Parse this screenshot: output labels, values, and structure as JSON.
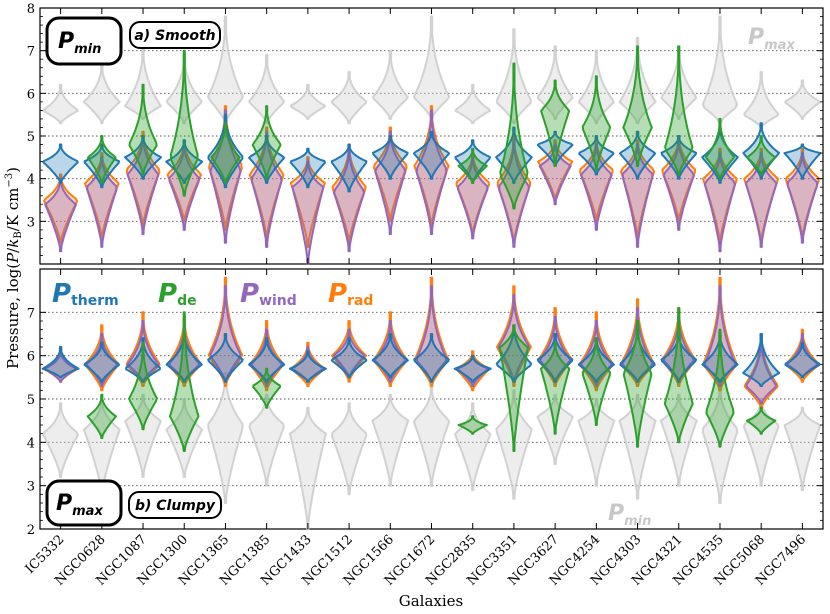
{
  "chart_data": {
    "type": "violin",
    "xlabel": "Galaxies",
    "ylabel": "Pressure, log(P/k_B/K cm^-3)",
    "ylabel_parts": {
      "pre": "Pressure, log(",
      "P": "P",
      "slash1": "/",
      "k": "k",
      "B": "B",
      "post": "/K cm",
      "exp": "−3",
      "close": ")"
    },
    "ylim": [
      2,
      8
    ],
    "yticks": [
      "3",
      "4",
      "5",
      "6",
      "7",
      "8"
    ],
    "yticks_bottom": [
      "2",
      "3",
      "4",
      "5",
      "6",
      "7"
    ],
    "grid": "dotted horizontal at integer ticks",
    "galaxies": [
      "IC5332",
      "NGC0628",
      "NGC1087",
      "NGC1300",
      "NGC1365",
      "NGC1385",
      "NGC1433",
      "NGC1512",
      "NGC1566",
      "NGC1672",
      "NGC2835",
      "NGC3351",
      "NGC3627",
      "NGC4254",
      "NGC4303",
      "NGC4321",
      "NGC4535",
      "NGC5068",
      "NGC7496"
    ],
    "colors": {
      "therm": "#1f77b4",
      "de": "#2ca02c",
      "wind": "#9467bd",
      "rad": "#ff7f0e",
      "ghost": "#bbbbbb"
    },
    "panels": [
      {
        "id": "a",
        "label": "a) Smooth",
        "measure": "P_min",
        "ghost_label": "P_max",
        "series": [
          {
            "name": "rad",
            "median": [
              3.5,
              3.9,
              4.2,
              4.1,
              4.3,
              4.1,
              3.9,
              3.8,
              4.3,
              4.3,
              3.9,
              3.9,
              4.4,
              4.2,
              4.2,
              4.2,
              4.0,
              4.0,
              4.0
            ],
            "lo": [
              2.5,
              2.6,
              2.9,
              3.0,
              2.8,
              2.6,
              2.4,
              2.5,
              3.0,
              2.9,
              2.7,
              2.5,
              3.5,
              3.0,
              2.6,
              3.0,
              2.5,
              2.5,
              2.6
            ],
            "hi": [
              4.1,
              4.6,
              5.1,
              4.9,
              5.7,
              5.2,
              4.5,
              4.8,
              5.2,
              5.7,
              4.6,
              5.0,
              4.9,
              4.9,
              4.9,
              5.0,
              4.7,
              4.7,
              4.7
            ]
          },
          {
            "name": "wind",
            "median": [
              3.4,
              3.8,
              4.1,
              4.0,
              4.2,
              4.0,
              3.8,
              3.7,
              4.2,
              4.2,
              3.8,
              3.8,
              4.3,
              4.1,
              4.1,
              4.1,
              3.9,
              3.9,
              3.9
            ],
            "lo": [
              2.3,
              2.4,
              2.7,
              2.8,
              2.5,
              2.4,
              2.0,
              2.3,
              2.7,
              2.7,
              2.6,
              2.4,
              3.4,
              2.8,
              2.4,
              2.8,
              2.3,
              2.4,
              2.5
            ],
            "hi": [
              4.0,
              4.5,
              5.0,
              4.8,
              5.6,
              5.1,
              4.4,
              4.7,
              5.1,
              5.6,
              4.5,
              4.9,
              4.8,
              4.8,
              4.8,
              4.9,
              4.6,
              4.6,
              4.6
            ]
          },
          {
            "name": "therm",
            "median": [
              4.4,
              4.4,
              4.5,
              4.4,
              4.5,
              4.5,
              4.4,
              4.4,
              4.6,
              4.6,
              4.5,
              4.5,
              4.8,
              4.6,
              4.6,
              4.6,
              4.5,
              4.6,
              4.6
            ],
            "lo": [
              3.9,
              3.8,
              4.0,
              3.9,
              3.8,
              3.9,
              3.8,
              3.7,
              4.0,
              4.0,
              3.9,
              3.9,
              4.3,
              4.1,
              4.0,
              4.0,
              3.9,
              4.0,
              4.0
            ],
            "hi": [
              4.8,
              4.8,
              5.0,
              4.9,
              5.5,
              5.0,
              4.7,
              4.8,
              5.0,
              5.1,
              4.9,
              5.2,
              5.1,
              5.0,
              5.1,
              5.0,
              5.2,
              5.3,
              4.8
            ]
          },
          {
            "name": "de",
            "median": [
              null,
              4.5,
              4.8,
              4.5,
              4.5,
              4.8,
              null,
              null,
              null,
              null,
              4.3,
              4.1,
              5.6,
              5.2,
              5.2,
              4.7,
              4.5,
              4.5,
              null
            ],
            "lo": [
              null,
              3.9,
              4.1,
              3.6,
              3.9,
              4.0,
              null,
              null,
              null,
              null,
              3.9,
              3.3,
              4.3,
              4.2,
              4.3,
              4.1,
              4.0,
              4.1,
              null
            ],
            "hi": [
              null,
              5.0,
              6.2,
              7.0,
              5.3,
              5.7,
              null,
              null,
              null,
              null,
              4.7,
              6.7,
              6.3,
              6.4,
              7.1,
              7.1,
              5.4,
              5.0,
              null
            ]
          },
          {
            "name": "ghost",
            "median": [
              5.6,
              5.8,
              5.7,
              5.8,
              5.9,
              5.8,
              5.7,
              5.8,
              5.9,
              5.9,
              5.6,
              5.8,
              5.9,
              5.8,
              5.8,
              5.9,
              5.7,
              5.5,
              5.8
            ],
            "lo": [
              5.3,
              5.3,
              5.4,
              5.3,
              5.3,
              5.3,
              5.4,
              5.3,
              5.4,
              5.4,
              5.3,
              5.3,
              5.4,
              5.3,
              5.3,
              5.4,
              5.3,
              5.2,
              5.4
            ],
            "hi": [
              6.2,
              6.7,
              7.1,
              6.9,
              7.8,
              6.9,
              6.2,
              6.5,
              7.0,
              7.8,
              6.2,
              7.5,
              7.1,
              7.0,
              7.3,
              7.1,
              7.8,
              6.5,
              6.3
            ]
          }
        ]
      },
      {
        "id": "b",
        "label": "b) Clumpy",
        "measure": "P_max",
        "ghost_label": "P_min",
        "series": [
          {
            "name": "rad",
            "median": [
              5.7,
              5.8,
              5.8,
              5.8,
              6.0,
              5.8,
              5.7,
              6.0,
              5.9,
              5.9,
              5.7,
              6.2,
              5.9,
              5.8,
              5.8,
              5.9,
              5.8,
              5.3,
              5.8
            ],
            "lo": [
              5.4,
              5.2,
              5.3,
              5.3,
              5.3,
              5.2,
              5.3,
              5.4,
              5.3,
              5.3,
              5.2,
              5.3,
              5.3,
              5.2,
              5.3,
              5.3,
              5.2,
              4.8,
              5.4
            ],
            "hi": [
              6.2,
              6.7,
              7.0,
              6.9,
              7.8,
              6.8,
              6.3,
              6.8,
              7.0,
              7.8,
              6.1,
              7.6,
              7.1,
              7.0,
              7.3,
              7.1,
              7.8,
              6.5,
              6.6
            ]
          },
          {
            "name": "wind",
            "median": [
              5.7,
              5.8,
              5.8,
              5.8,
              6.0,
              5.8,
              5.7,
              6.0,
              5.9,
              5.9,
              5.7,
              6.2,
              5.9,
              5.8,
              5.8,
              5.9,
              5.8,
              5.3,
              5.8
            ],
            "lo": [
              5.4,
              5.3,
              5.4,
              5.4,
              5.4,
              5.3,
              5.4,
              5.5,
              5.4,
              5.4,
              5.3,
              5.4,
              5.4,
              5.3,
              5.4,
              5.4,
              5.3,
              4.9,
              5.5
            ],
            "hi": [
              6.1,
              6.5,
              6.8,
              6.7,
              7.6,
              6.6,
              6.2,
              6.6,
              6.8,
              7.6,
              6.0,
              7.4,
              6.9,
              6.8,
              7.1,
              6.9,
              7.6,
              6.4,
              6.5
            ]
          },
          {
            "name": "therm",
            "median": [
              5.7,
              5.8,
              5.7,
              5.8,
              5.9,
              5.8,
              5.7,
              5.9,
              5.9,
              5.9,
              5.7,
              5.8,
              5.9,
              5.8,
              5.8,
              5.9,
              5.8,
              5.6,
              5.8
            ],
            "lo": [
              5.5,
              5.4,
              5.4,
              5.4,
              5.4,
              5.4,
              5.4,
              5.5,
              5.5,
              5.4,
              5.4,
              5.4,
              5.4,
              5.4,
              5.4,
              5.4,
              5.4,
              5.3,
              5.5
            ],
            "hi": [
              6.2,
              6.3,
              6.4,
              6.5,
              6.5,
              6.4,
              6.1,
              6.4,
              6.5,
              6.5,
              6.0,
              6.7,
              6.5,
              6.4,
              6.6,
              6.5,
              6.5,
              6.5,
              6.3
            ]
          },
          {
            "name": "de",
            "median": [
              null,
              4.6,
              5.0,
              4.6,
              null,
              5.3,
              null,
              null,
              null,
              null,
              4.4,
              6.2,
              5.7,
              5.6,
              5.6,
              4.9,
              4.7,
              4.5,
              null
            ],
            "lo": [
              null,
              4.1,
              4.3,
              3.8,
              null,
              4.8,
              null,
              null,
              null,
              null,
              4.2,
              3.8,
              4.2,
              4.4,
              3.9,
              4.0,
              3.9,
              4.2,
              null
            ],
            "hi": [
              null,
              5.1,
              6.3,
              7.0,
              null,
              5.7,
              null,
              null,
              null,
              null,
              4.6,
              6.7,
              6.3,
              6.4,
              6.8,
              7.1,
              6.6,
              4.8,
              null
            ]
          },
          {
            "name": "ghost",
            "median": [
              4.2,
              4.3,
              4.5,
              4.3,
              4.4,
              4.4,
              4.2,
              4.2,
              4.5,
              4.5,
              4.2,
              4.3,
              4.6,
              4.5,
              4.5,
              4.5,
              4.3,
              4.4,
              4.4
            ],
            "lo": [
              3.2,
              2.8,
              3.2,
              3.2,
              2.6,
              3.0,
              2.0,
              2.8,
              3.0,
              3.0,
              2.9,
              2.7,
              3.5,
              3.0,
              2.7,
              3.0,
              2.6,
              3.0,
              2.9
            ],
            "hi": [
              4.9,
              5.0,
              5.1,
              5.0,
              5.6,
              5.1,
              4.8,
              4.9,
              5.1,
              5.3,
              4.9,
              5.2,
              5.1,
              5.0,
              5.1,
              5.1,
              5.3,
              5.0,
              4.8
            ]
          }
        ]
      }
    ],
    "legend": {
      "therm": {
        "P": "P",
        "sub": "therm"
      },
      "de": {
        "P": "P",
        "sub": "de"
      },
      "wind": {
        "P": "P",
        "sub": "wind"
      },
      "rad": {
        "P": "P",
        "sub": "rad"
      }
    },
    "labels": {
      "pmin_P": "P",
      "pmin_sub": "min",
      "pmax_P": "P",
      "pmax_sub": "max",
      "panel_a": "a) Smooth",
      "panel_b": "b) Clumpy",
      "ghost_a_P": "P",
      "ghost_a_sub": "max",
      "ghost_b_P": "P",
      "ghost_b_sub": "min"
    }
  }
}
